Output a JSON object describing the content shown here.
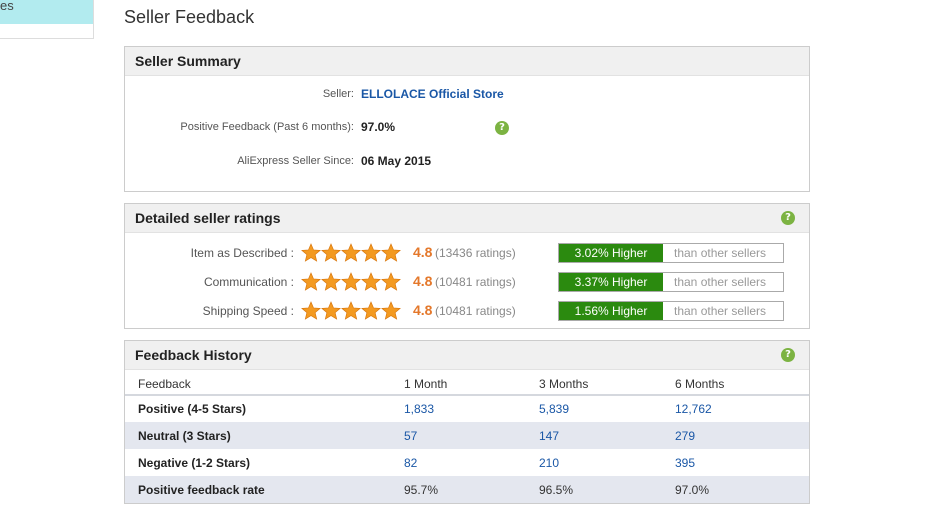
{
  "sidebar": {
    "tab_label": "es"
  },
  "page": {
    "title": "Seller Feedback"
  },
  "summary": {
    "heading": "Seller Summary",
    "seller_label": "Seller:",
    "seller_name": "ELLOLACE Official Store",
    "positive_label": "Positive Feedback (Past 6 months):",
    "positive_value": "97.0%",
    "since_label": "AliExpress Seller Since:",
    "since_value": "06 May 2015",
    "help_glyph": "?"
  },
  "ratings": {
    "heading": "Detailed seller ratings",
    "help_glyph": "?",
    "star_color": "#f39a21",
    "rows": [
      {
        "label": "Item as Described :",
        "stars": 5,
        "score": "4.8",
        "count": "(13436 ratings)",
        "higher": "3.02% Higher",
        "than": "than other sellers"
      },
      {
        "label": "Communication :",
        "stars": 5,
        "score": "4.8",
        "count": "(10481 ratings)",
        "higher": "3.37% Higher",
        "than": "than other sellers"
      },
      {
        "label": "Shipping Speed :",
        "stars": 5,
        "score": "4.8",
        "count": "(10481 ratings)",
        "higher": "1.56% Higher",
        "than": "than other sellers"
      }
    ]
  },
  "history": {
    "heading": "Feedback History",
    "help_glyph": "?",
    "columns": [
      "Feedback",
      "1 Month",
      "3 Months",
      "6 Months"
    ],
    "rows": [
      {
        "label": "Positive (4-5 Stars)",
        "values": [
          "1,833",
          "5,839",
          "12,762"
        ]
      },
      {
        "label": "Neutral (3 Stars)",
        "values": [
          "57",
          "147",
          "279"
        ]
      },
      {
        "label": "Negative (1-2 Stars)",
        "values": [
          "82",
          "210",
          "395"
        ]
      },
      {
        "label": "Positive feedback rate",
        "values": [
          "95.7%",
          "96.5%",
          "97.0%"
        ]
      }
    ]
  }
}
